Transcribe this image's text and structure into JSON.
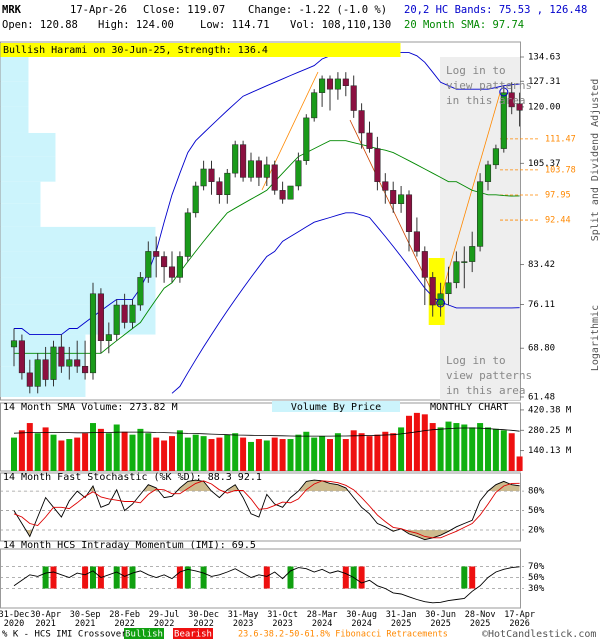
{
  "header": {
    "symbol": "MRK",
    "date": "17-Apr-26",
    "close": "Close: 119.07",
    "change": "Change: -1.22 (-1.0 %)",
    "bands": "20,2 HC Bands: 75.53 , 126.48",
    "open": "Open: 120.88",
    "high": "High: 124.00",
    "low": "Low: 114.71",
    "volume": "Vol: 108,110,130",
    "sma": "20 Month SMA: 97.74"
  },
  "chart_data": [
    {
      "type": "candlestick",
      "pattern": "Bullish Harami on 30-Jun-25, Strength: 136.4",
      "notes": [
        "Log in to view patterns in this area",
        "Log in to view patterns in this area"
      ],
      "y_axis_label": "Split and Dividend Adjusted",
      "scale_label": "Logarithmic",
      "log_scale": true,
      "categories": [
        "31-Dec\n2020",
        null,
        null,
        null,
        "30-Apr\n2021",
        null,
        null,
        null,
        null,
        "30-Sep\n2021",
        null,
        null,
        null,
        null,
        "28-Feb\n2022",
        null,
        null,
        null,
        null,
        "29-Jul\n2022",
        null,
        null,
        null,
        null,
        "30-Dec\n2022",
        null,
        null,
        null,
        null,
        "31-May\n2023",
        null,
        null,
        null,
        null,
        "31-Oct\n2023",
        null,
        null,
        null,
        null,
        "28-Mar\n2024",
        null,
        null,
        null,
        null,
        "30-Aug\n2024",
        null,
        null,
        null,
        null,
        "31-Jan\n2025",
        null,
        null,
        null,
        null,
        "30-Jun\n2025",
        null,
        null,
        null,
        null,
        "28-Nov\n2025",
        null,
        null,
        null,
        null,
        "17-Apr\n2026"
      ],
      "open": [
        69,
        70,
        65,
        63,
        67,
        64,
        69,
        66,
        67,
        66,
        65,
        78,
        70,
        71,
        76,
        73,
        76,
        81,
        86,
        85,
        83,
        81,
        85,
        94,
        100,
        104,
        101,
        98,
        103,
        110,
        102,
        106,
        102,
        105,
        99,
        97,
        100,
        106,
        117,
        124,
        128,
        125,
        128,
        126,
        119,
        113,
        109,
        101,
        99,
        96,
        98,
        90,
        86,
        81,
        76,
        78,
        80,
        84,
        84,
        87,
        101,
        105,
        109,
        124,
        120.88
      ],
      "high": [
        72,
        71,
        67,
        68,
        69,
        70,
        71,
        69,
        70,
        70,
        80,
        79,
        73,
        77,
        78,
        77,
        82,
        88,
        89,
        86,
        86,
        86,
        95,
        101,
        106,
        106,
        102,
        104,
        111,
        111,
        108,
        107,
        107,
        106,
        101,
        100,
        108,
        118,
        125,
        129,
        129,
        130,
        130,
        129,
        121,
        116,
        112,
        103,
        101,
        100,
        99,
        93,
        87,
        82,
        80,
        83,
        86,
        87,
        90,
        103,
        106,
        110,
        126,
        127,
        124.0
      ],
      "low": [
        66,
        64,
        62,
        62,
        63,
        63,
        65,
        64,
        65,
        64,
        64,
        68,
        68,
        70,
        72,
        72,
        75,
        80,
        81,
        80,
        80,
        80,
        84,
        93,
        99,
        98,
        96,
        96,
        102,
        101,
        101,
        100,
        100,
        98,
        96,
        97,
        99,
        105,
        116,
        120,
        119,
        122,
        123,
        117,
        109,
        108,
        99,
        96,
        94,
        94,
        86,
        85,
        76,
        74,
        74,
        76,
        79,
        79,
        82,
        86,
        99,
        104,
        108,
        118,
        114.71
      ],
      "close": [
        70,
        65,
        63,
        67,
        64,
        69,
        66,
        67,
        66,
        65,
        78,
        70,
        71,
        76,
        73,
        76,
        81,
        86,
        85,
        83,
        81,
        85,
        94,
        100,
        104,
        101,
        98,
        103,
        110,
        102,
        106,
        102,
        105,
        99,
        97,
        100,
        106,
        117,
        124,
        128,
        125,
        128,
        126,
        119,
        113,
        109,
        101,
        99,
        96,
        98,
        90,
        86,
        81,
        76,
        78,
        80,
        84,
        84,
        87,
        101,
        105,
        109,
        124,
        120,
        119.07
      ],
      "up_color": "#1a9a1a",
      "down_color": "#8b1040",
      "overlays": [
        {
          "color": "#0000cc",
          "values": [
            72,
            72,
            71,
            71,
            71,
            71,
            71,
            72,
            72,
            73,
            74,
            75,
            76,
            77,
            77,
            77,
            79,
            82,
            86,
            92,
            98,
            103,
            108,
            111,
            113,
            115,
            117,
            119,
            121,
            123,
            124,
            125,
            126,
            127,
            128,
            129,
            130,
            131,
            132,
            134,
            135,
            136,
            137,
            137,
            137,
            137,
            137,
            137,
            136,
            136,
            136,
            135,
            133,
            130,
            127,
            126,
            125,
            125,
            125,
            125,
            125,
            125.5,
            126,
            126.3,
            126.48
          ]
        },
        {
          "color": "#0000cc",
          "values": [
            null,
            null,
            null,
            null,
            null,
            null,
            null,
            null,
            null,
            null,
            null,
            null,
            null,
            null,
            null,
            null,
            null,
            null,
            null,
            null,
            62,
            63,
            65,
            67,
            69,
            71,
            73,
            75,
            77,
            79,
            81,
            83,
            85,
            86,
            88,
            89,
            90,
            91,
            92,
            92.5,
            93,
            93.5,
            94,
            94,
            93.5,
            93,
            91,
            89,
            87,
            85,
            83,
            81,
            79,
            77.5,
            76.5,
            76,
            75.5,
            75.5,
            75.5,
            75.5,
            75.5,
            75.5,
            75.5,
            75.5,
            75.53
          ]
        },
        {
          "color": "#008800",
          "values": [
            68,
            68,
            68,
            68,
            68,
            68,
            68,
            68,
            68,
            68,
            68,
            68,
            69,
            70,
            71,
            72,
            73,
            75,
            77,
            79,
            80,
            82,
            84,
            86,
            88,
            90,
            92,
            94,
            95,
            96,
            97,
            98,
            99,
            101,
            103,
            105,
            107,
            108,
            109,
            110,
            111,
            111,
            111,
            110.5,
            110,
            109.5,
            109,
            108.6,
            108,
            107,
            106,
            105,
            104,
            103,
            102,
            101,
            101,
            100,
            99,
            98.5,
            98,
            98,
            97.8,
            97.7,
            97.74
          ]
        }
      ],
      "ylim": [
        61.48,
        134.63
      ],
      "yticks": [
        134.63,
        127.31,
        {
          "value": 120,
          "label": "120.00"
        },
        105.37,
        83.42,
        76.11,
        {
          "value": 68.8,
          "label": "68.80"
        },
        61.48
      ],
      "fibonacci": {
        "color": "#ff8800",
        "levels": [
          111.47,
          103.78,
          97.95,
          92.44
        ]
      },
      "volume_by_price": {
        "color": "#ccf4fc",
        "bins": [
          61.48,
          66,
          71,
          76.11,
          81,
          86,
          91,
          96,
          101,
          107,
          113,
          120,
          127.31,
          134.63
        ],
        "values": [
          85,
          85,
          155,
          155,
          155,
          155,
          40,
          40,
          55,
          55,
          28,
          28,
          28
        ],
        "xlim": [
          0,
          155
        ]
      }
    },
    {
      "type": "bar",
      "title": "14 Month SMA Volume: 273.82 M",
      "label": "Volume By Price",
      "period": "MONTHLY CHART",
      "up_color": "#10b010",
      "down_color": "#ee1010",
      "sma_color": "#000000",
      "values": [
        230,
        280,
        330,
        260,
        300,
        250,
        210,
        220,
        230,
        260,
        330,
        290,
        260,
        320,
        270,
        250,
        290,
        260,
        230,
        210,
        240,
        280,
        230,
        250,
        240,
        220,
        230,
        250,
        260,
        230,
        200,
        220,
        210,
        230,
        220,
        220,
        250,
        270,
        230,
        240,
        220,
        260,
        220,
        280,
        260,
        240,
        250,
        270,
        260,
        300,
        380,
        400,
        390,
        330,
        300,
        340,
        330,
        320,
        300,
        330,
        300,
        290,
        280,
        260,
        100
      ],
      "sma": [
        260,
        262,
        265,
        265,
        266,
        266,
        265,
        264,
        263,
        263,
        264,
        265,
        265,
        267,
        268,
        268,
        268,
        267,
        265,
        264,
        262,
        261,
        259,
        258,
        256,
        254,
        252,
        250,
        248,
        247,
        246,
        245,
        244,
        243,
        242,
        241,
        240,
        240,
        240,
        240,
        240,
        241,
        241,
        242,
        243,
        244,
        246,
        248,
        250,
        255,
        262,
        270,
        278,
        284,
        288,
        292,
        295,
        296,
        296,
        295,
        292,
        288,
        284,
        280,
        273.82
      ],
      "ylim": [
        0,
        468
      ],
      "yticks": [
        {
          "value": 420.38,
          "label": "420.38 M"
        },
        {
          "value": 280.25,
          "label": "280.25 M"
        },
        {
          "value": 140.13,
          "label": "140.13 M"
        }
      ]
    },
    {
      "type": "line",
      "title": "14 Month Fast Stochastic (%K %D): 88.3  92.1",
      "zone_color": "#cdbb8e",
      "series": [
        {
          "color": "#000000",
          "values": [
            50,
            30,
            10,
            40,
            70,
            55,
            40,
            65,
            80,
            70,
            88,
            55,
            60,
            82,
            50,
            60,
            75,
            90,
            85,
            70,
            72,
            85,
            95,
            97,
            95,
            80,
            70,
            82,
            90,
            70,
            45,
            40,
            75,
            60,
            55,
            70,
            80,
            95,
            97,
            96,
            92,
            90,
            85,
            70,
            55,
            45,
            30,
            25,
            18,
            22,
            14,
            10,
            5,
            8,
            12,
            18,
            25,
            30,
            35,
            65,
            80,
            90,
            95,
            90,
            88.3
          ]
        },
        {
          "color": "#dd0000",
          "values": [
            45,
            40,
            30,
            27,
            40,
            55,
            55,
            53,
            62,
            72,
            79,
            71,
            68,
            66,
            64,
            64,
            62,
            75,
            83,
            82,
            76,
            76,
            84,
            92,
            96,
            91,
            82,
            77,
            81,
            81,
            68,
            52,
            53,
            58,
            63,
            62,
            68,
            82,
            91,
            96,
            95,
            93,
            89,
            82,
            70,
            57,
            43,
            33,
            24,
            22,
            18,
            15,
            10,
            8,
            8,
            13,
            18,
            24,
            30,
            43,
            60,
            78,
            88,
            92,
            92.1
          ]
        }
      ],
      "ylim": [
        3,
        108
      ],
      "yticks": [
        {
          "value": 80,
          "label": "80%"
        },
        {
          "value": 50,
          "label": "50%"
        },
        {
          "value": 20,
          "label": "20%"
        }
      ]
    },
    {
      "type": "line",
      "title": "14 Month HCS Intraday Momentum (IMI): 69.5",
      "color": "#000000",
      "values": [
        35,
        45,
        55,
        52,
        58,
        60,
        55,
        50,
        58,
        55,
        62,
        50,
        55,
        60,
        52,
        58,
        62,
        55,
        50,
        55,
        48,
        60,
        65,
        62,
        58,
        52,
        55,
        60,
        66,
        58,
        50,
        55,
        52,
        60,
        48,
        62,
        68,
        66,
        60,
        65,
        58,
        62,
        57,
        50,
        40,
        45,
        35,
        30,
        22,
        20,
        15,
        10,
        6,
        4,
        5,
        8,
        10,
        12,
        25,
        35,
        50,
        60,
        65,
        68,
        69.5
      ],
      "crossover": [
        null,
        null,
        null,
        null,
        1,
        -1,
        null,
        null,
        null,
        -1,
        1,
        -1,
        null,
        1,
        -1,
        1,
        null,
        null,
        null,
        null,
        null,
        -1,
        1,
        null,
        1,
        null,
        null,
        null,
        null,
        null,
        null,
        null,
        -1,
        null,
        null,
        1,
        null,
        null,
        null,
        null,
        null,
        null,
        -1,
        1,
        -1,
        null,
        null,
        null,
        null,
        null,
        null,
        null,
        null,
        null,
        null,
        null,
        null,
        1,
        -1,
        null,
        null,
        null,
        null,
        null,
        null
      ],
      "bullish_color": "#10a010",
      "bearish_color": "#ee1010",
      "ylim": [
        0,
        100
      ],
      "yticks": [
        {
          "value": 70,
          "label": "70%"
        },
        {
          "value": 50,
          "label": "50%"
        },
        {
          "value": 30,
          "label": "30%"
        }
      ]
    }
  ],
  "footer": {
    "crossover": "% K - HCS IMI Crossover:",
    "bullish": "Bullish",
    "bearish": "Bearish",
    "fibonacci": "23.6-38.2-50-61.8% Fibonacci Retracements",
    "copyright": "©HotCandlestick.com"
  }
}
